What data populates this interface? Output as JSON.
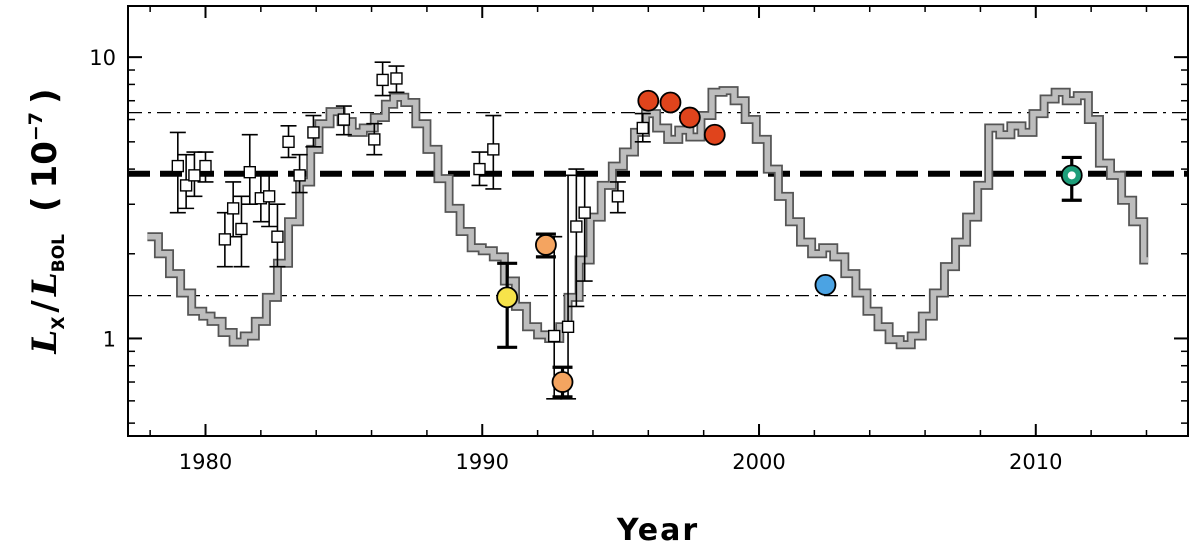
{
  "chart_data": {
    "type": "scatter",
    "xlabel": "Year",
    "ylabel": {
      "main": "L",
      "sub1": "X",
      "slash": "/",
      "sub2": "BOL",
      "open": "(",
      "scale": "10",
      "exp": "−7",
      "close": ")"
    },
    "xlim": [
      1977.2,
      2015.5
    ],
    "ylim": [
      0.45,
      15.2
    ],
    "y_scale": "log",
    "x_ticks": [
      1980,
      1990,
      2000,
      2010
    ],
    "x_tick_labels": [
      "1980",
      "1990",
      "2000",
      "2010"
    ],
    "y_ticks": [
      1,
      10
    ],
    "y_tick_labels": [
      "1",
      "10"
    ],
    "reference_lines": [
      {
        "style": "dashed-thick",
        "y": 3.85
      },
      {
        "style": "dash-dot",
        "y": 6.35
      },
      {
        "style": "dash-dot",
        "y": 1.42
      }
    ],
    "series": [
      {
        "kind": "step-line",
        "color": "#bdbdbd",
        "x": [
          1977.9,
          1978.3,
          1978.7,
          1979.1,
          1979.5,
          1979.9,
          1980.2,
          1980.6,
          1981.0,
          1981.4,
          1981.8,
          1982.2,
          1982.6,
          1983.0,
          1983.4,
          1983.8,
          1984.1,
          1984.5,
          1984.9,
          1985.3,
          1985.7,
          1986.1,
          1986.5,
          1986.8,
          1987.2,
          1987.6,
          1988.0,
          1988.4,
          1988.8,
          1989.2,
          1989.6,
          1990.0,
          1990.4,
          1990.8,
          1991.2,
          1991.6,
          1992.0,
          1992.4,
          1992.8,
          1993.1,
          1993.5,
          1993.9,
          1994.3,
          1994.7,
          1995.1,
          1995.5,
          1995.9,
          1996.3,
          1996.7,
          1997.1,
          1997.5,
          1997.9,
          1998.3,
          1998.7,
          1999.1,
          1999.5,
          1999.9,
          2000.3,
          2000.7,
          2001.1,
          2001.5,
          2001.9,
          2002.3,
          2002.7,
          2003.1,
          2003.5,
          2003.9,
          2004.3,
          2004.7,
          2005.1,
          2005.5,
          2005.9,
          2006.3,
          2006.7,
          2007.1,
          2007.5,
          2007.9,
          2008.3,
          2008.7,
          2009.1,
          2009.5,
          2009.9,
          2010.3,
          2010.7,
          2011.1,
          2011.5,
          2011.9,
          2012.3,
          2012.7,
          2013.1,
          2013.5,
          2013.9
        ],
        "values": [
          2.3,
          2.0,
          1.7,
          1.45,
          1.25,
          1.2,
          1.15,
          1.05,
          0.97,
          1.02,
          1.15,
          1.4,
          1.85,
          2.6,
          3.6,
          4.7,
          5.8,
          6.4,
          5.9,
          5.4,
          5.6,
          6.1,
          6.8,
          7.2,
          6.9,
          5.8,
          4.7,
          3.7,
          2.9,
          2.4,
          2.1,
          2.05,
          1.95,
          1.6,
          1.3,
          1.1,
          1.03,
          1.0,
          1.1,
          1.4,
          1.9,
          2.7,
          3.5,
          4.1,
          4.6,
          5.4,
          6.3,
          5.6,
          5.1,
          5.5,
          5.2,
          6.2,
          7.5,
          7.6,
          7.0,
          6.0,
          5.1,
          4.0,
          3.2,
          2.6,
          2.2,
          2.0,
          2.1,
          1.95,
          1.7,
          1.45,
          1.25,
          1.1,
          0.99,
          0.95,
          1.02,
          1.2,
          1.45,
          1.8,
          2.2,
          2.7,
          3.5,
          5.6,
          5.3,
          5.7,
          5.4,
          6.3,
          7.1,
          7.5,
          7.0,
          7.3,
          6.0,
          4.2,
          3.8,
          3.1,
          2.6,
          1.9
        ]
      },
      {
        "kind": "open-squares-with-errorbars",
        "color": "#000000",
        "points": [
          {
            "x": 1979.0,
            "y": 4.1,
            "lo": 2.8,
            "hi": 5.4
          },
          {
            "x": 1979.3,
            "y": 3.5,
            "lo": 2.9,
            "hi": 4.5
          },
          {
            "x": 1979.6,
            "y": 3.8,
            "lo": 3.2,
            "hi": 4.6
          },
          {
            "x": 1980.0,
            "y": 4.1,
            "lo": 3.6,
            "hi": 4.6
          },
          {
            "x": 1980.7,
            "y": 2.25,
            "lo": 1.8,
            "hi": 2.8
          },
          {
            "x": 1981.0,
            "y": 2.9,
            "lo": 2.3,
            "hi": 3.6
          },
          {
            "x": 1981.3,
            "y": 2.45,
            "lo": 1.8,
            "hi": 3.2
          },
          {
            "x": 1981.6,
            "y": 3.9,
            "lo": 3.0,
            "hi": 5.3
          },
          {
            "x": 1982.0,
            "y": 3.15,
            "lo": 2.6,
            "hi": 3.8
          },
          {
            "x": 1982.3,
            "y": 3.2,
            "lo": 2.5,
            "hi": 3.8
          },
          {
            "x": 1982.6,
            "y": 2.3,
            "lo": 1.8,
            "hi": 3.0
          },
          {
            "x": 1983.0,
            "y": 5.0,
            "lo": 4.4,
            "hi": 5.7
          },
          {
            "x": 1983.4,
            "y": 3.8,
            "lo": 3.3,
            "hi": 4.5
          },
          {
            "x": 1983.9,
            "y": 5.4,
            "lo": 4.8,
            "hi": 6.2
          },
          {
            "x": 1985.0,
            "y": 6.0,
            "lo": 5.3,
            "hi": 6.7
          },
          {
            "x": 1986.1,
            "y": 5.1,
            "lo": 4.5,
            "hi": 5.8
          },
          {
            "x": 1986.4,
            "y": 8.3,
            "lo": 7.3,
            "hi": 9.6
          },
          {
            "x": 1986.9,
            "y": 8.4,
            "lo": 7.5,
            "hi": 9.3
          },
          {
            "x": 1989.9,
            "y": 4.0,
            "lo": 3.5,
            "hi": 4.6
          },
          {
            "x": 1990.4,
            "y": 4.7,
            "lo": 3.4,
            "hi": 6.2
          },
          {
            "x": 1992.6,
            "y": 1.02,
            "lo": 0.61,
            "hi": 2.3
          },
          {
            "x": 1993.1,
            "y": 1.1,
            "lo": 0.61,
            "hi": 3.8
          },
          {
            "x": 1993.4,
            "y": 2.5,
            "lo": 1.3,
            "hi": 4.0
          },
          {
            "x": 1993.7,
            "y": 2.8,
            "lo": 1.6,
            "hi": 3.8
          },
          {
            "x": 1994.9,
            "y": 3.2,
            "lo": 2.8,
            "hi": 3.6
          },
          {
            "x": 1995.8,
            "y": 5.6,
            "lo": 5.0,
            "hi": 6.3
          }
        ]
      },
      {
        "kind": "filled-circles",
        "points": [
          {
            "x": 1990.9,
            "y": 1.4,
            "lo": 0.93,
            "hi": 1.85,
            "color": "#f7e34a"
          },
          {
            "x": 1992.3,
            "y": 2.15,
            "lo": 1.95,
            "hi": 2.35,
            "color": "#f4a460"
          },
          {
            "x": 1992.9,
            "y": 0.7,
            "lo": 0.62,
            "hi": 0.79,
            "color": "#f4a460"
          },
          {
            "x": 1996.0,
            "y": 7.0,
            "color": "#e0441c"
          },
          {
            "x": 1996.8,
            "y": 6.9,
            "color": "#e0441c"
          },
          {
            "x": 1997.5,
            "y": 6.1,
            "color": "#e0441c"
          },
          {
            "x": 1998.4,
            "y": 5.3,
            "color": "#e0441c"
          },
          {
            "x": 2002.4,
            "y": 1.55,
            "color": "#4ba3e3"
          },
          {
            "x": 2011.3,
            "y": 3.8,
            "lo": 3.1,
            "hi": 4.4,
            "color": "#1e9e7a",
            "hollow_center": true
          }
        ]
      }
    ]
  }
}
